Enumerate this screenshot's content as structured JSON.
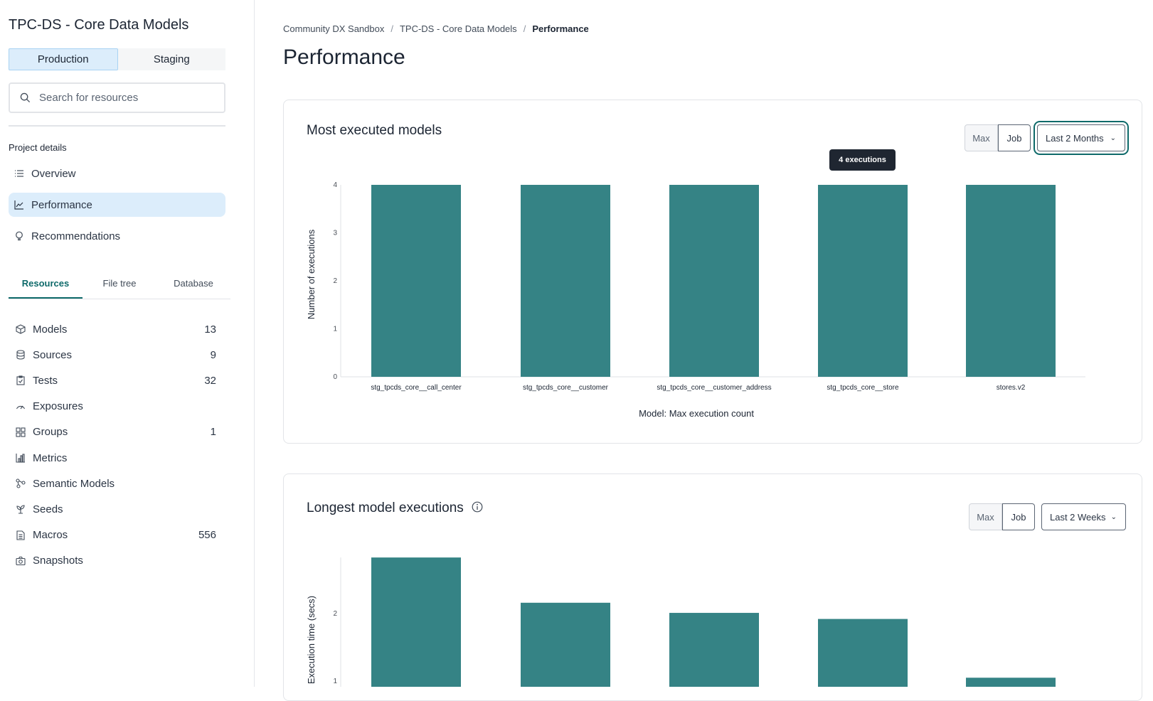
{
  "sidebar": {
    "project_title": "TPC-DS - Core Data Models",
    "env_tabs": [
      {
        "label": "Production",
        "active": true
      },
      {
        "label": "Staging",
        "active": false
      }
    ],
    "search_placeholder": "Search for resources",
    "section_label": "Project details",
    "nav": [
      {
        "label": "Overview",
        "icon": "list-icon"
      },
      {
        "label": "Performance",
        "icon": "line-chart-icon",
        "active": true
      },
      {
        "label": "Recommendations",
        "icon": "lightbulb-icon"
      }
    ],
    "tabs": [
      {
        "label": "Resources",
        "active": true
      },
      {
        "label": "File tree"
      },
      {
        "label": "Database"
      }
    ],
    "resources": [
      {
        "label": "Models",
        "count": "13",
        "icon": "cube-icon"
      },
      {
        "label": "Sources",
        "count": "9",
        "icon": "database-icon"
      },
      {
        "label": "Tests",
        "count": "32",
        "icon": "clipboard-check-icon"
      },
      {
        "label": "Exposures",
        "count": "",
        "icon": "gauge-icon"
      },
      {
        "label": "Groups",
        "count": "1",
        "icon": "grid-icon"
      },
      {
        "label": "Metrics",
        "count": "",
        "icon": "bar-chart-icon"
      },
      {
        "label": "Semantic Models",
        "count": "",
        "icon": "graph-nodes-icon"
      },
      {
        "label": "Seeds",
        "count": "",
        "icon": "sprout-icon"
      },
      {
        "label": "Macros",
        "count": "556",
        "icon": "document-icon"
      },
      {
        "label": "Snapshots",
        "count": "",
        "icon": "camera-icon"
      }
    ]
  },
  "breadcrumb": [
    "Community DX Sandbox",
    "TPC-DS - Core Data Models",
    "Performance"
  ],
  "page_title": "Performance",
  "cards": [
    {
      "title": "Most executed models",
      "toggle": [
        "Max",
        "Job"
      ],
      "range": "Last 2 Months",
      "tooltip": "4 executions"
    },
    {
      "title": "Longest model executions",
      "toggle": [
        "Max",
        "Job"
      ],
      "range": "Last 2 Weeks",
      "info_icon": "info-icon"
    }
  ],
  "colors": {
    "bar": "#358385",
    "accent": "#0e6a6a",
    "active_bg": "#dcedfb"
  },
  "chart_data": [
    {
      "type": "bar",
      "categories": [
        "stg_tpcds_core__call_center",
        "stg_tpcds_core__customer",
        "stg_tpcds_core__customer_address",
        "stg_tpcds_core__store",
        "stores.v2"
      ],
      "values": [
        4,
        4,
        4,
        4,
        4
      ],
      "xlabel": "Model: Max execution count",
      "ylabel": "Number of executions",
      "ylim": [
        0,
        4
      ],
      "yticks": [
        "0",
        "1",
        "2",
        "3",
        "4"
      ]
    },
    {
      "type": "bar",
      "values": [
        2.83,
        2.16,
        2.01,
        1.92,
        1.05
      ],
      "ylabel": "Execution time (secs)",
      "yticks": [
        "1",
        "2"
      ]
    }
  ]
}
